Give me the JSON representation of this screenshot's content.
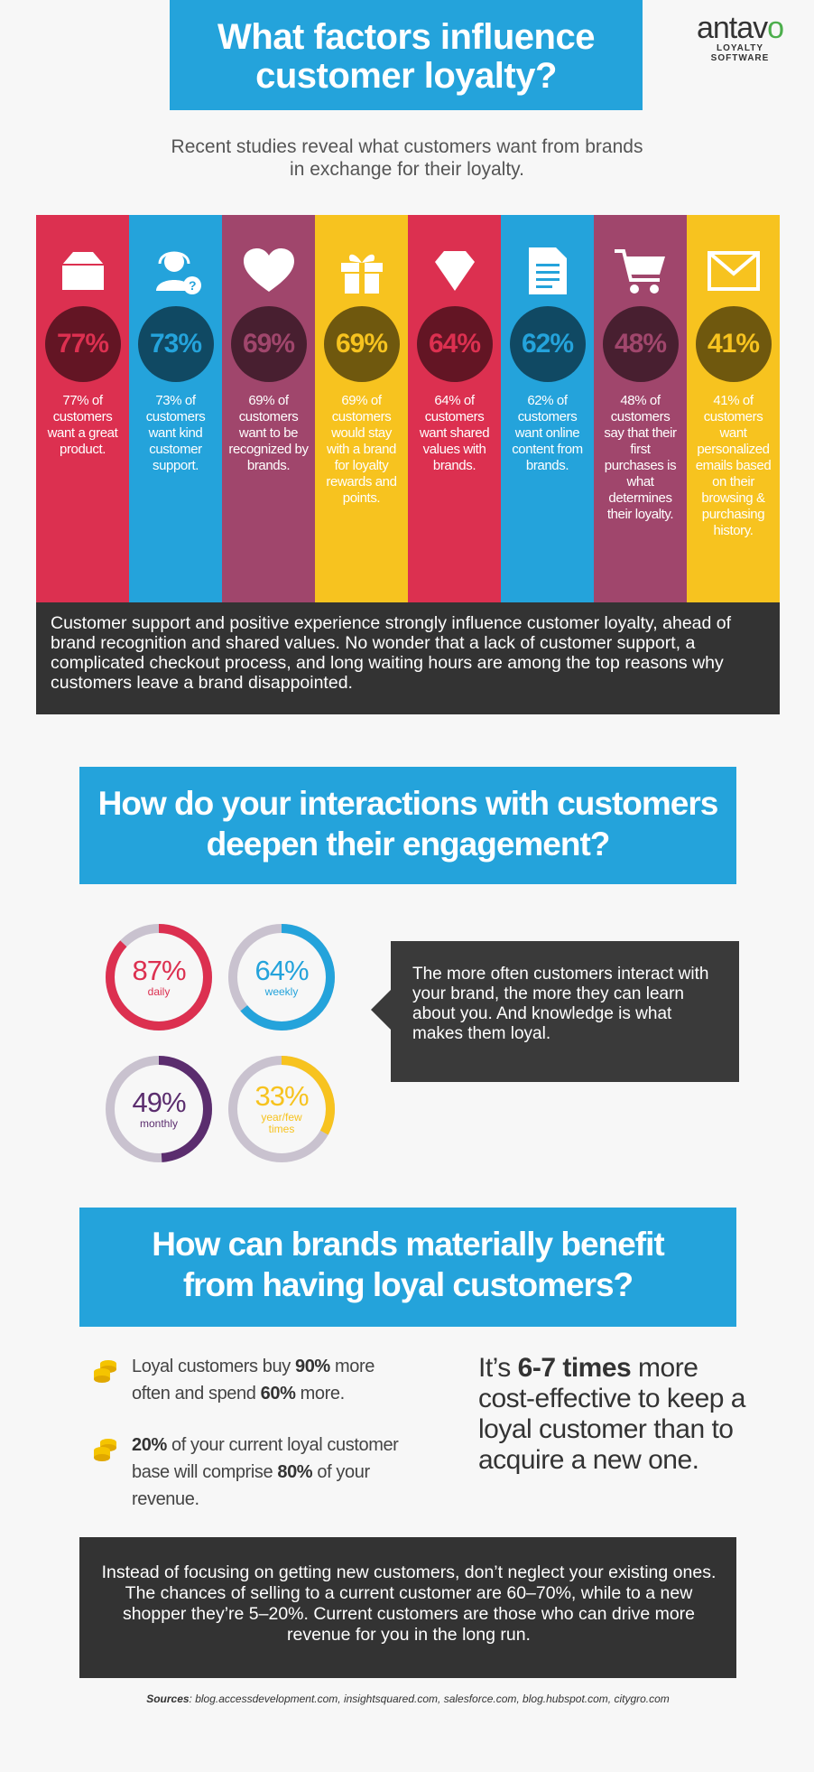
{
  "header": {
    "title_line1": "What factors influence",
    "title_line2": "customer loyalty?",
    "brand_name": "antavo",
    "brand_tagline": "LOYALTY SOFTWARE"
  },
  "intro": {
    "line1": "Recent studies reveal what customers want from brands",
    "line2": "in exchange for their loyalty."
  },
  "stats": [
    {
      "icon": "box-icon",
      "color": "#dc3050",
      "percent": "77%",
      "text": "77% of customers want a great product."
    },
    {
      "icon": "support-agent-icon",
      "color": "#24a3db",
      "percent": "73%",
      "text": "73% of customers want kind customer support."
    },
    {
      "icon": "heart-icon",
      "color": "#a0466c",
      "percent": "69%",
      "text": "69% of customers want to be recognized by brands."
    },
    {
      "icon": "gift-icon",
      "color": "#f7c31f",
      "percent": "69%",
      "text": "69% of customers would stay with a brand for loyalty rewards and points."
    },
    {
      "icon": "diamond-icon",
      "color": "#dc3050",
      "percent": "64%",
      "text": "64% of customers want shared values with brands."
    },
    {
      "icon": "document-icon",
      "color": "#24a3db",
      "percent": "62%",
      "text": "62% of customers want online content from brands."
    },
    {
      "icon": "cart-icon",
      "color": "#a0466c",
      "percent": "48%",
      "text": "48% of customers say that their first purchases is what determines their loyalty."
    },
    {
      "icon": "envelope-icon",
      "color": "#f7c31f",
      "percent": "41%",
      "text": "41% of customers want personalized emails based on their browsing & purchasing history."
    }
  ],
  "summary": "Customer support and positive experience strongly influence customer loyalty, ahead of brand recognition and shared values. No wonder that a lack of customer support, a complicated checkout process, and long waiting hours are among the top reasons why customers leave a brand disappointed.",
  "section2": {
    "title_line1": "How do your interactions with customers",
    "title_line2": "deepen their engagement?"
  },
  "donuts": [
    {
      "percent": "87%",
      "value": 0.87,
      "caption": "daily",
      "color": "#dc3050"
    },
    {
      "percent": "64%",
      "value": 0.64,
      "caption": "weekly",
      "color": "#24a3db"
    },
    {
      "percent": "49%",
      "value": 0.49,
      "caption": "monthly",
      "color": "#5b2d6e"
    },
    {
      "percent": "33%",
      "value": 0.33,
      "caption": "year/few times",
      "color": "#f7c31f"
    }
  ],
  "callout": "The more often customers interact with your brand, the more they can learn about you. And knowledge is what makes them loyal.",
  "section3": {
    "title_line1": "How can brands materially benefit",
    "title_line2": "from having loyal customers?"
  },
  "benefits": {
    "b1_pre": "Loyal customers buy ",
    "b1_bold1": "90%",
    "b1_mid": " more often and spend ",
    "b1_bold2": "60%",
    "b1_post": " more.",
    "b2_bold1": "20%",
    "b2_mid": " of your current loyal customer base will comprise ",
    "b2_bold2": "80%",
    "b2_post": " of your revenue."
  },
  "effective": {
    "pre": "It’s ",
    "bold": "6-7 times",
    "post": " more cost-effective to keep a loyal customer than to acquire a new one."
  },
  "closing": "Instead of focusing on getting new customers, don’t neglect your existing ones. The chances of selling to a current customer are 60–70%, while to a new shopper they’re 5–20%. Current customers are those who can drive more revenue for you in the long run.",
  "sources": {
    "label": "Sources",
    "text": ": blog.accessdevelopment.com, insightsquared.com, salesforce.com, blog.hubspot.com, citygro.com"
  }
}
